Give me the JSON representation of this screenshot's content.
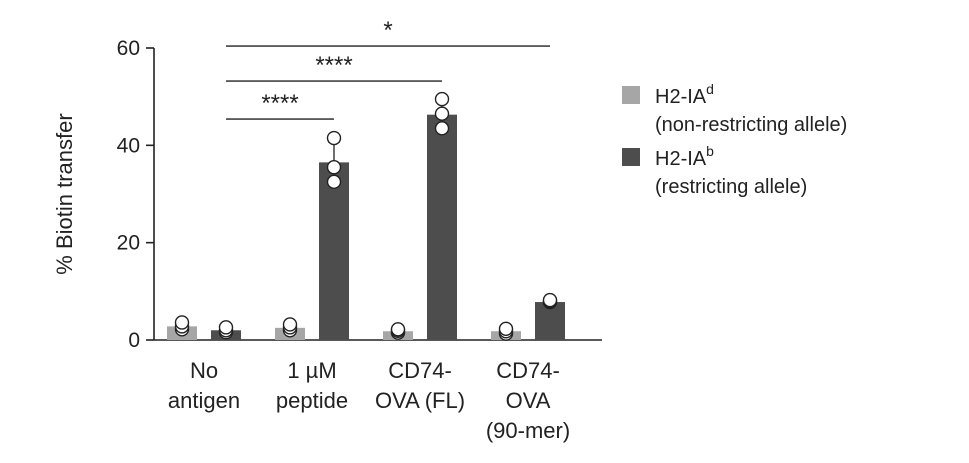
{
  "chart_data": {
    "type": "bar",
    "ylabel": "% Biotin transfer",
    "ylim": [
      0,
      60
    ],
    "yticks": [
      0,
      20,
      40,
      60
    ],
    "grid": false,
    "legend_position": "right",
    "categories": [
      [
        "No",
        "antigen"
      ],
      [
        "1 µM",
        "peptide"
      ],
      [
        "CD74-",
        "OVA (FL)"
      ],
      [
        "CD74-",
        "OVA",
        "(90-mer)"
      ]
    ],
    "series": [
      {
        "name": "H2-IAd",
        "legend_base": "H2-IA",
        "legend_sup": "d",
        "legend_sub": "(non-restricting allele)",
        "color": "#a6a6a6",
        "values": [
          2.8,
          2.5,
          1.8,
          1.8
        ],
        "errors": [
          0.6,
          0.5,
          0.4,
          0.4
        ],
        "points": [
          [
            2.2,
            2.8,
            3.6
          ],
          [
            2.0,
            2.6,
            3.2
          ],
          [
            1.5,
            1.9,
            2.2
          ],
          [
            1.3,
            1.8,
            2.3
          ]
        ]
      },
      {
        "name": "H2-IAb",
        "legend_base": "H2-IA",
        "legend_sup": "b",
        "legend_sub": "(restricting allele)",
        "color": "#4d4d4d",
        "values": [
          2.0,
          36.5,
          46.3,
          7.8
        ],
        "errors": [
          0.8,
          4.2,
          3.0,
          0.5
        ],
        "points": [
          [
            1.6,
            2.0,
            2.6
          ],
          [
            32.5,
            35.5,
            41.5
          ],
          [
            43.5,
            46.5,
            49.5
          ],
          [
            7.8,
            8.0,
            8.2
          ]
        ]
      }
    ],
    "significance": [
      {
        "from": 0,
        "to": 1,
        "y": 45.4,
        "label": "****"
      },
      {
        "from": 0,
        "to": 2,
        "y": 53.2,
        "label": "****"
      },
      {
        "from": 0,
        "to": 3,
        "y": 60.4,
        "label": "*"
      }
    ]
  }
}
